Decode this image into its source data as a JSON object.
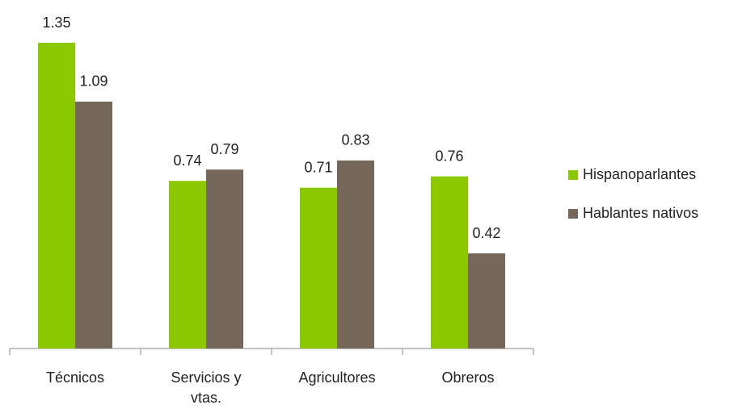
{
  "chart_data": {
    "type": "bar",
    "categories": [
      "Técnicos",
      "Servicios y vtas.",
      "Agricultores",
      "Obreros"
    ],
    "series": [
      {
        "name": "Hispanoparlantes",
        "color": "#8cc800",
        "values": [
          1.35,
          0.74,
          0.71,
          0.76
        ]
      },
      {
        "name": "Hablantes nativos",
        "color": "#75675a",
        "values": [
          1.09,
          0.79,
          0.83,
          0.42
        ]
      }
    ],
    "legend": "right"
  }
}
